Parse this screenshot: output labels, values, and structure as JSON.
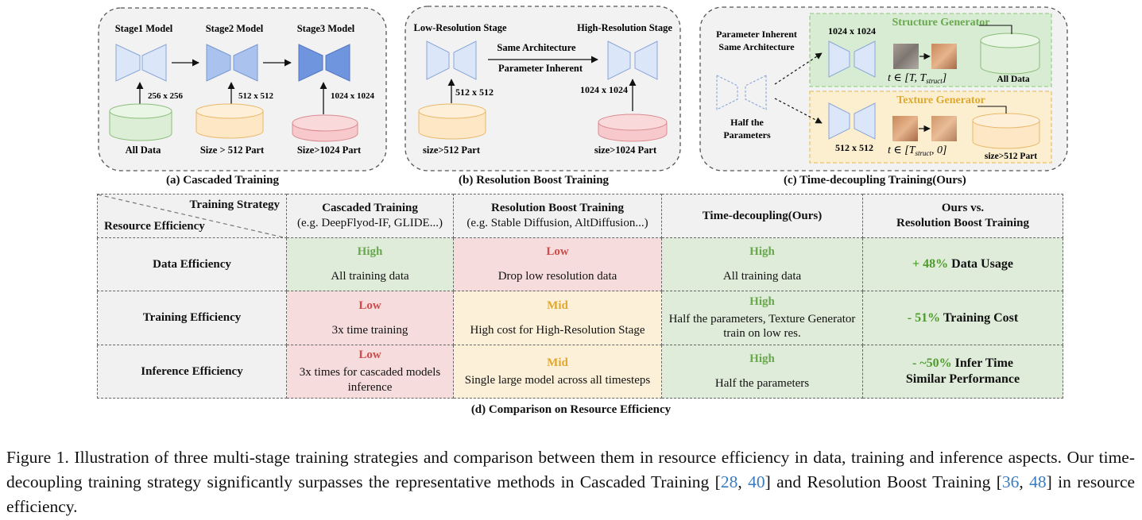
{
  "panels": {
    "a": {
      "caption": "(a) Cascaded Training",
      "models": [
        "Stage1 Model",
        "Stage2 Model",
        "Stage3 Model"
      ],
      "resolutions": [
        "256 x 256",
        "512 x 512",
        "1024 x 1024"
      ],
      "datasets": [
        "All Data",
        "Size > 512 Part",
        "Size>1024 Part"
      ]
    },
    "b": {
      "caption": "(b) Resolution Boost Training",
      "low_stage": "Low-Resolution Stage",
      "high_stage": "High-Resolution Stage",
      "arrow_top": "Same Architecture",
      "arrow_bottom": "Parameter Inherent",
      "low_res": "512 x 512",
      "high_res": "1024 x 1024",
      "low_data": "size>512 Part",
      "high_data": "size>1024 Part"
    },
    "c": {
      "caption": "(c) Time-decoupling Training(Ours)",
      "inherit_line1": "Parameter Inherent",
      "inherit_line2": "Same Architecture",
      "half_line1": "Half the",
      "half_line2": "Parameters",
      "structure_title": "Structure Generator",
      "structure_res": "1024 x 1024",
      "structure_time": "t ∈ [T, T",
      "structure_time_sub": "struct",
      "structure_time_end": "]",
      "structure_data": "All Data",
      "texture_title": "Texture Generator",
      "texture_res": "512 x 512",
      "texture_time": "t ∈ [T",
      "texture_time_sub": "struct",
      "texture_time_end": ", 0]",
      "texture_data": "size>512 Part"
    }
  },
  "table": {
    "corner_top": "Training Strategy",
    "corner_bottom": "Resource Efficiency",
    "columns": [
      {
        "title": "Cascaded Training",
        "sub": "(e.g. DeepFlyod-IF, GLIDE...)"
      },
      {
        "title": "Resolution Boost Training",
        "sub": "(e.g. Stable Diffusion, AltDiffusion...)"
      },
      {
        "title": "Time-decoupling(Ours)",
        "sub": ""
      },
      {
        "title": "Ours vs.",
        "sub": "Resolution Boost Training"
      }
    ],
    "rows": [
      {
        "label": "Data Efficiency",
        "cells": [
          {
            "level": "High",
            "text": "All training data",
            "tone": "green"
          },
          {
            "level": "Low",
            "text": "Drop low resolution data",
            "tone": "red"
          },
          {
            "level": "High",
            "text": "All training data",
            "tone": "green"
          }
        ],
        "compare_value": "+ 48%",
        "compare_text": " Data Usage",
        "compare_line2": ""
      },
      {
        "label": "Training Efficiency",
        "cells": [
          {
            "level": "Low",
            "text": "3x time training",
            "tone": "red"
          },
          {
            "level": "Mid",
            "text": "High cost for High-Resolution Stage",
            "tone": "amber"
          },
          {
            "level": "High",
            "text": "Half the parameters, Texture Generator train on low res.",
            "tone": "green"
          }
        ],
        "compare_value": "- 51%",
        "compare_text": " Training Cost",
        "compare_line2": ""
      },
      {
        "label": "Inference Efficiency",
        "cells": [
          {
            "level": "Low",
            "text": "3x times for cascaded models inference",
            "tone": "red"
          },
          {
            "level": "Mid",
            "text": "Single large model across all timesteps",
            "tone": "amber"
          },
          {
            "level": "High",
            "text": "Half the parameters",
            "tone": "green"
          }
        ],
        "compare_value": "- ~50%",
        "compare_text": " Infer Time",
        "compare_line2": "Similar Performance"
      }
    ],
    "caption": "(d) Comparison on Resource Efficiency"
  },
  "figure_caption": {
    "prefix": "Figure 1.  Illustration of three multi-stage training strategies and comparison between them in resource efficiency in data, training and inference aspects. Our time-decoupling training strategy significantly surpasses the representative methods in Cascaded Training [",
    "ref1": "28",
    "sep1": ", ",
    "ref2": "40",
    "mid": "] and Resolution Boost Training [",
    "ref3": "36",
    "sep2": ", ",
    "ref4": "48",
    "suffix": "] in resource efficiency."
  },
  "colors": {
    "panel_bg": "#f2f2f2",
    "model_light": "#dbe6f8",
    "model_mid": "#a9c2ee",
    "model_dark": "#6f95df",
    "db_green": "#dcefd6",
    "db_orange": "#fde7c4",
    "db_red": "#f7c9cc",
    "struct_bg": "#d7ecd2",
    "texture_bg": "#fcefcf",
    "struct_title": "#6aa84f",
    "texture_title": "#e0a82e"
  }
}
